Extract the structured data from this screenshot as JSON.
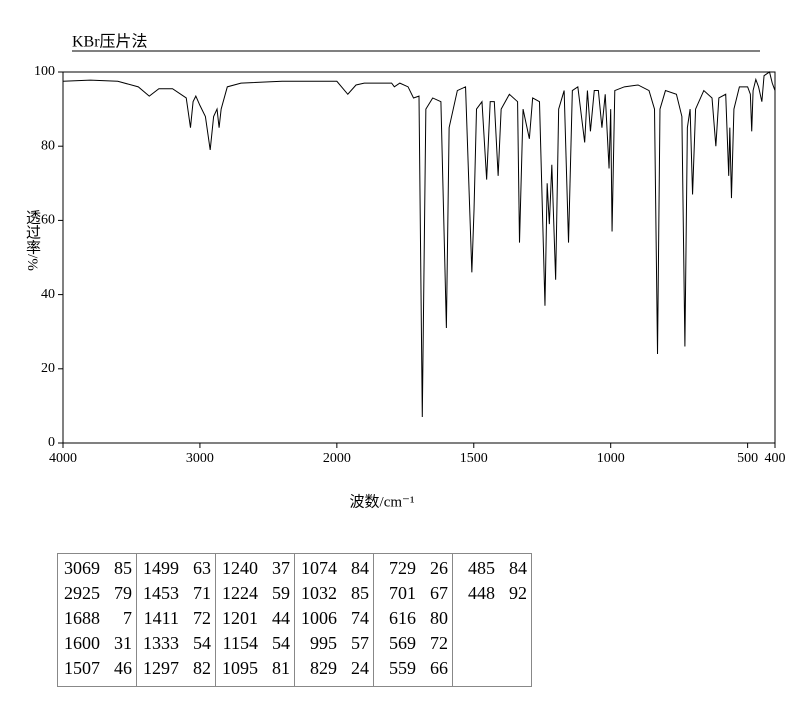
{
  "chart_data": {
    "type": "line",
    "title": "KBr压片法",
    "x_label": "波数/cm⁻¹",
    "y_label": "透过率/%",
    "color": "#000000",
    "xlim": [
      4000,
      400
    ],
    "x_break": 2000,
    "xticks": [
      4000,
      3000,
      2000,
      1500,
      1000,
      500,
      400
    ],
    "ylim": [
      0,
      100
    ],
    "yticks": [
      0,
      20,
      40,
      60,
      80,
      100
    ],
    "x": [
      4000,
      3800,
      3600,
      3450,
      3370,
      3300,
      3200,
      3100,
      3069,
      3050,
      3030,
      3000,
      2960,
      2925,
      2900,
      2875,
      2860,
      2845,
      2800,
      2700,
      2400,
      2200,
      2000,
      1960,
      1930,
      1900,
      1800,
      1790,
      1770,
      1740,
      1720,
      1700,
      1688,
      1675,
      1650,
      1620,
      1600,
      1590,
      1560,
      1530,
      1507,
      1499,
      1490,
      1470,
      1453,
      1440,
      1425,
      1411,
      1400,
      1370,
      1340,
      1333,
      1320,
      1297,
      1285,
      1260,
      1240,
      1232,
      1224,
      1215,
      1201,
      1190,
      1170,
      1154,
      1140,
      1120,
      1095,
      1085,
      1074,
      1060,
      1045,
      1032,
      1020,
      1006,
      1000,
      995,
      985,
      950,
      900,
      860,
      840,
      829,
      820,
      800,
      760,
      740,
      729,
      720,
      710,
      701,
      690,
      660,
      630,
      616,
      605,
      580,
      569,
      565,
      559,
      550,
      530,
      500,
      490,
      485,
      480,
      470,
      460,
      448,
      440,
      420,
      410,
      400
    ],
    "values": [
      97.5,
      97.8,
      97.5,
      96,
      93.5,
      95.5,
      95.5,
      93,
      85,
      92,
      93.5,
      91,
      88,
      79,
      88,
      90,
      85,
      90,
      96,
      97,
      97.5,
      97.5,
      97.5,
      94,
      96.5,
      97,
      97,
      96,
      97,
      96,
      93,
      93.5,
      7,
      90,
      93,
      92,
      31,
      85,
      95,
      96,
      46,
      63,
      90,
      92,
      71,
      92,
      92,
      72,
      90,
      94,
      92,
      54,
      90,
      82,
      93,
      92,
      37,
      70,
      59,
      75,
      44,
      90,
      95,
      54,
      95,
      96,
      81,
      95,
      84,
      95,
      95,
      85,
      94,
      74,
      90,
      57,
      95,
      96,
      96.5,
      95,
      90,
      24,
      90,
      95,
      94,
      88,
      26,
      85,
      90,
      67,
      90,
      95,
      93,
      80,
      93,
      94,
      72,
      85,
      66,
      90,
      96,
      96,
      94,
      84,
      95,
      98,
      96,
      92,
      99,
      100,
      97,
      95
    ]
  },
  "peak_table": [
    [
      [
        3069,
        85
      ],
      [
        2925,
        79
      ],
      [
        1688,
        7
      ],
      [
        1600,
        31
      ],
      [
        1507,
        46
      ]
    ],
    [
      [
        1499,
        63
      ],
      [
        1453,
        71
      ],
      [
        1411,
        72
      ],
      [
        1333,
        54
      ],
      [
        1297,
        82
      ]
    ],
    [
      [
        1240,
        37
      ],
      [
        1224,
        59
      ],
      [
        1201,
        44
      ],
      [
        1154,
        54
      ],
      [
        1095,
        81
      ]
    ],
    [
      [
        1074,
        84
      ],
      [
        1032,
        85
      ],
      [
        1006,
        74
      ],
      [
        995,
        57
      ],
      [
        829,
        24
      ]
    ],
    [
      [
        729,
        26
      ],
      [
        701,
        67
      ],
      [
        616,
        80
      ],
      [
        569,
        72
      ],
      [
        559,
        66
      ]
    ],
    [
      [
        485,
        84
      ],
      [
        448,
        92
      ]
    ]
  ]
}
